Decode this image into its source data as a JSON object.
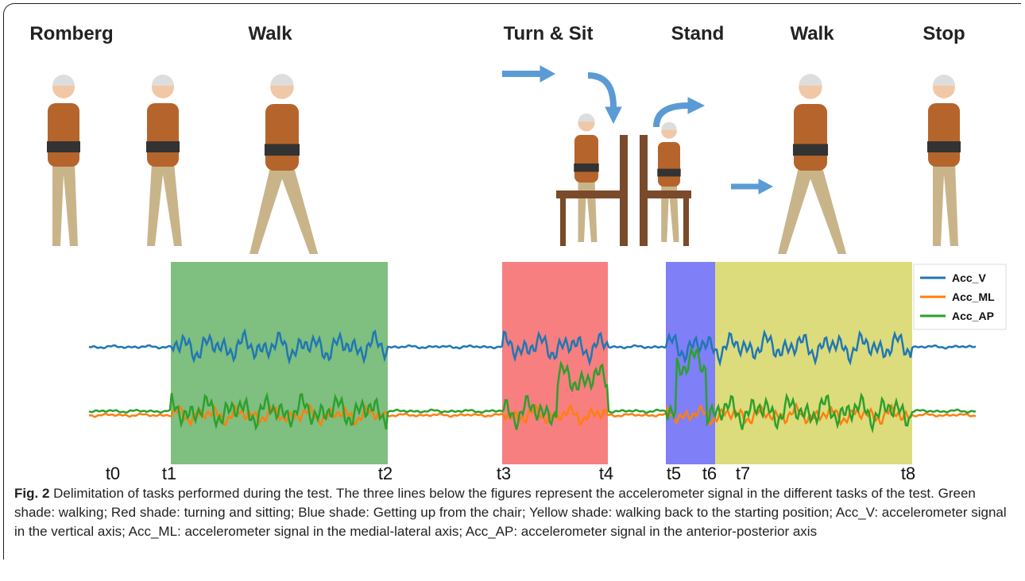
{
  "tasks": [
    "Romberg",
    "Walk",
    "Turn & Sit",
    "Stand",
    "Walk",
    "Stop"
  ],
  "time_markers": [
    "t0",
    "t1",
    "t2",
    "t3",
    "t4",
    "t5",
    "t6",
    "t7",
    "t8"
  ],
  "legend": [
    {
      "name": "Acc_V",
      "color": "#1f77b4"
    },
    {
      "name": "Acc_ML",
      "color": "#ff7f0e"
    },
    {
      "name": "Acc_AP",
      "color": "#2ca02c"
    }
  ],
  "caption": {
    "label": "Fig. 2",
    "text": "Delimitation of tasks performed during the test. The three lines below the figures represent the accelerometer signal in the different tasks of the test. Green shade: walking; Red shade: turning and sitting; Blue shade: Getting up from the chair; Yellow shade: walking back to the starting position; Acc_V: accelerometer signal in the vertical axis; Acc_ML: accelerometer signal in the medial-lateral axis; Acc_AP: accelerometer signal in the anterior-posterior axis"
  }
}
